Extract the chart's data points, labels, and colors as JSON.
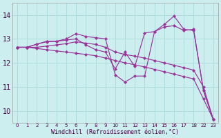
{
  "xlabel": "Windchill (Refroidissement éolien,°C)",
  "background_color": "#cceeee",
  "grid_color": "#aadddd",
  "line_color": "#993399",
  "ylim": [
    9.5,
    14.5
  ],
  "yticks": [
    10,
    11,
    12,
    13,
    14
  ],
  "xtick_labels": [
    "0",
    "1",
    "2",
    "3",
    "4",
    "5",
    "6",
    "7",
    "8",
    "9",
    "10",
    "11",
    "12",
    "13",
    "14",
    "15",
    "16",
    "17",
    "18",
    "22",
    "23"
  ],
  "series": [
    {
      "xi": [
        0,
        1,
        2,
        3,
        4,
        5,
        6,
        7,
        8,
        9,
        10,
        11,
        12,
        13,
        14,
        15,
        16,
        17,
        18,
        19,
        20
      ],
      "y": [
        12.65,
        12.65,
        12.78,
        12.9,
        12.9,
        13.0,
        13.22,
        13.1,
        13.05,
        13.0,
        11.5,
        11.2,
        11.45,
        11.45,
        13.3,
        13.6,
        13.95,
        13.4,
        13.35,
        10.85,
        9.65
      ]
    },
    {
      "xi": [
        0,
        1,
        2,
        3,
        4,
        5,
        6,
        7,
        8,
        9,
        10,
        11,
        12,
        13,
        14,
        15,
        16,
        17,
        18,
        19,
        20
      ],
      "y": [
        12.65,
        12.65,
        12.78,
        12.88,
        12.9,
        12.95,
        13.0,
        12.75,
        12.55,
        12.45,
        11.75,
        12.45,
        11.85,
        13.25,
        13.3,
        13.5,
        13.55,
        13.35,
        13.4,
        10.85,
        9.65
      ]
    },
    {
      "xi": [
        0,
        1,
        2,
        3,
        4,
        5,
        6,
        7,
        8,
        9,
        10,
        11,
        12,
        13,
        14,
        15,
        16,
        17,
        18,
        19,
        20
      ],
      "y": [
        12.65,
        12.65,
        12.65,
        12.7,
        12.75,
        12.8,
        12.88,
        12.82,
        12.77,
        12.65,
        12.45,
        12.35,
        12.28,
        12.2,
        12.1,
        12.0,
        11.9,
        11.8,
        11.7,
        11.0,
        9.65
      ]
    },
    {
      "xi": [
        0,
        1,
        2,
        3,
        4,
        5,
        6,
        7,
        8,
        9,
        10,
        11,
        12,
        13,
        14,
        15,
        16,
        17,
        18,
        19,
        20
      ],
      "y": [
        12.65,
        12.65,
        12.6,
        12.55,
        12.5,
        12.45,
        12.4,
        12.35,
        12.3,
        12.2,
        12.1,
        12.0,
        11.92,
        11.83,
        11.73,
        11.63,
        11.53,
        11.43,
        11.33,
        10.5,
        9.65
      ]
    }
  ]
}
